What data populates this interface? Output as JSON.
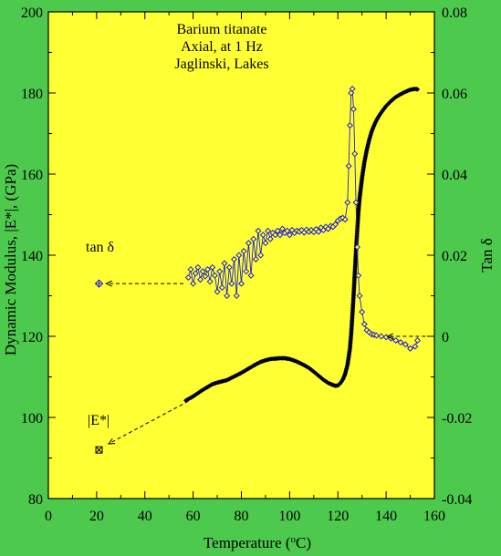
{
  "colors": {
    "background": "#4dc94d",
    "plot_area": "#ffff33",
    "modulus_series": "#000000",
    "tan_series": "#1f1fd6"
  },
  "chart_data": {
    "type": "scatter",
    "title_lines": [
      "Barium titanate",
      "Axial, at 1 Hz",
      "Jaglinski, Lakes"
    ],
    "xlabel": "Temperature (",
    "xlabel_sup": "o",
    "xlabel_tail": "C)",
    "ylabel_left": "Dynamic Modulus, |E*|, (GPa)",
    "ylabel_right": "Tan δ",
    "xlim": [
      0,
      160
    ],
    "ylim_left": [
      80,
      200
    ],
    "ylim_right": [
      -0.04,
      0.08
    ],
    "x_ticks": [
      "0",
      "20",
      "40",
      "60",
      "80",
      "100",
      "120",
      "140",
      "160"
    ],
    "y_left_ticks": [
      "80",
      "100",
      "120",
      "140",
      "160",
      "180",
      "200"
    ],
    "y_right_ticks": [
      "-0.04",
      "-0.02",
      "0",
      "0.02",
      "0.04",
      "0.06",
      "0.08"
    ],
    "grid": false,
    "legend": [
      {
        "label": "tan δ",
        "marker": "open diamond with cross",
        "x": 21,
        "y_left": 133
      },
      {
        "label": "|E*|",
        "marker": "open square with cross",
        "x": 21,
        "y_left": 92
      }
    ],
    "series": [
      {
        "name": "|E*|",
        "axis": "left",
        "marker": "filled diamond",
        "x": [
          57,
          60,
          62,
          64,
          66,
          68,
          70,
          72,
          74,
          76,
          78,
          80,
          82,
          84,
          86,
          88,
          90,
          92,
          94,
          96,
          98,
          100,
          102,
          104,
          106,
          108,
          110,
          112,
          114,
          116,
          118,
          119,
          120,
          121,
          122,
          123,
          124,
          125,
          125.5,
          126,
          126.5,
          127,
          127.5,
          128,
          128.5,
          129,
          130,
          131,
          132,
          133,
          134,
          135,
          136,
          137,
          138,
          139,
          140,
          142,
          144,
          146,
          148,
          150,
          152,
          153
        ],
        "y": [
          104.2,
          105.2,
          106.0,
          106.8,
          107.5,
          108.2,
          108.6,
          108.9,
          109.2,
          109.8,
          110.4,
          111.0,
          111.7,
          112.4,
          113.1,
          113.7,
          114.1,
          114.4,
          114.5,
          114.6,
          114.6,
          114.4,
          114.0,
          113.5,
          112.9,
          112.2,
          111.3,
          110.3,
          109.3,
          108.5,
          108.0,
          107.8,
          107.9,
          108.4,
          109.3,
          110.7,
          113.0,
          117.0,
          120.5,
          125.0,
          130.0,
          135.5,
          141.0,
          146.0,
          150.5,
          154.0,
          159.0,
          163.0,
          166.0,
          168.5,
          170.5,
          172.0,
          173.3,
          174.3,
          175.2,
          176.0,
          176.8,
          178.0,
          179.0,
          179.7,
          180.3,
          180.8,
          181.0,
          180.9
        ]
      },
      {
        "name": "tan δ",
        "axis": "right",
        "marker": "open diamond",
        "x": [
          58,
          59,
          60,
          61,
          62,
          63,
          64,
          65,
          66,
          67,
          68,
          69,
          70,
          71,
          72,
          73,
          74,
          75,
          76,
          77,
          78,
          79,
          80,
          81,
          82,
          83,
          84,
          85,
          86,
          87,
          88,
          89,
          90,
          91,
          92,
          93,
          94,
          95,
          96,
          97,
          98,
          99,
          100,
          101,
          102,
          103,
          104,
          105,
          106,
          107,
          108,
          109,
          110,
          111,
          112,
          113,
          114,
          115,
          116,
          117,
          118,
          119,
          120,
          121,
          122,
          123,
          124,
          124.5,
          125,
          125.5,
          126,
          126.5,
          127,
          127.5,
          128,
          128.5,
          129,
          130,
          131,
          132,
          133,
          134,
          135,
          136,
          138,
          140,
          142,
          144,
          146,
          148,
          150,
          152,
          153
        ],
        "y": [
          0.0145,
          0.0165,
          0.013,
          0.0155,
          0.017,
          0.014,
          0.016,
          0.0148,
          0.0165,
          0.0135,
          0.017,
          0.015,
          0.011,
          0.016,
          0.012,
          0.018,
          0.01,
          0.017,
          0.013,
          0.019,
          0.01,
          0.02,
          0.013,
          0.021,
          0.016,
          0.023,
          0.015,
          0.024,
          0.019,
          0.026,
          0.02,
          0.025,
          0.023,
          0.026,
          0.024,
          0.0255,
          0.025,
          0.026,
          0.025,
          0.0265,
          0.0255,
          0.026,
          0.025,
          0.0262,
          0.0255,
          0.026,
          0.0258,
          0.0262,
          0.0256,
          0.0263,
          0.0258,
          0.0262,
          0.0257,
          0.0264,
          0.0258,
          0.0268,
          0.0262,
          0.027,
          0.0265,
          0.0272,
          0.027,
          0.0276,
          0.0285,
          0.029,
          0.0292,
          0.0288,
          0.033,
          0.042,
          0.052,
          0.06,
          0.061,
          0.056,
          0.045,
          0.033,
          0.022,
          0.015,
          0.01,
          0.006,
          0.003,
          0.0015,
          0.001,
          0.0005,
          0.0004,
          0.0002,
          0.0,
          -0.0002,
          -0.0005,
          -0.001,
          -0.0015,
          -0.002,
          -0.003,
          -0.0025,
          -0.001
        ]
      }
    ]
  }
}
